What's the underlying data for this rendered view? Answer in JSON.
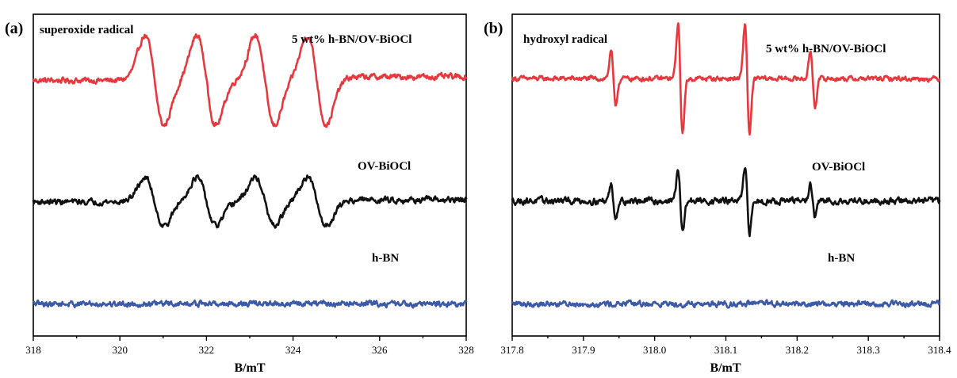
{
  "chart_data": [
    {
      "type": "line",
      "panel_letter": "(a)",
      "title": "superoxide radical",
      "xlabel": "B/mT",
      "ylabel": "",
      "xlim": [
        318,
        328
      ],
      "xticks": [
        "318",
        "320",
        "322",
        "324",
        "326",
        "328"
      ],
      "yticks": "none",
      "spectrum_kind": "superoxide",
      "line_positions": [
        320.8,
        322.0,
        323.35,
        324.55
      ],
      "series": [
        {
          "name": "5 wt% h-BN/OV-BiOCl",
          "color": "#e8383d",
          "baseline": 0.8,
          "amplitude": 0.14,
          "noise": 0.007
        },
        {
          "name": "OV-BiOCl",
          "color": "#111111",
          "baseline": 0.42,
          "amplitude": 0.075,
          "noise": 0.007
        },
        {
          "name": "h-BN",
          "color": "#3d5aa8",
          "baseline": 0.1,
          "amplitude": 0.0,
          "noise": 0.007
        }
      ]
    },
    {
      "type": "line",
      "panel_letter": "(b)",
      "title": "hydroxyl radical",
      "xlabel": "B/mT",
      "ylabel": "",
      "xlim": [
        317.8,
        318.4
      ],
      "xticks": [
        "317.8",
        "317.9",
        "318.0",
        "318.1",
        "318.2",
        "318.3",
        "318.4"
      ],
      "yticks": "none",
      "spectrum_kind": "hydroxyl",
      "line_positions": [
        317.942,
        318.036,
        318.13,
        318.222
      ],
      "line_intensities": [
        1,
        2,
        2,
        1
      ],
      "series": [
        {
          "name": "5 wt% h-BN/OV-BiOCl",
          "color": "#e8383d",
          "baseline": 0.8,
          "amplitude": 0.085,
          "noise": 0.006
        },
        {
          "name": "OV-BiOCl",
          "color": "#111111",
          "baseline": 0.42,
          "amplitude": 0.05,
          "noise": 0.008
        },
        {
          "name": "h-BN",
          "color": "#3d5aa8",
          "baseline": 0.1,
          "amplitude": 0.0,
          "noise": 0.007
        }
      ]
    }
  ]
}
